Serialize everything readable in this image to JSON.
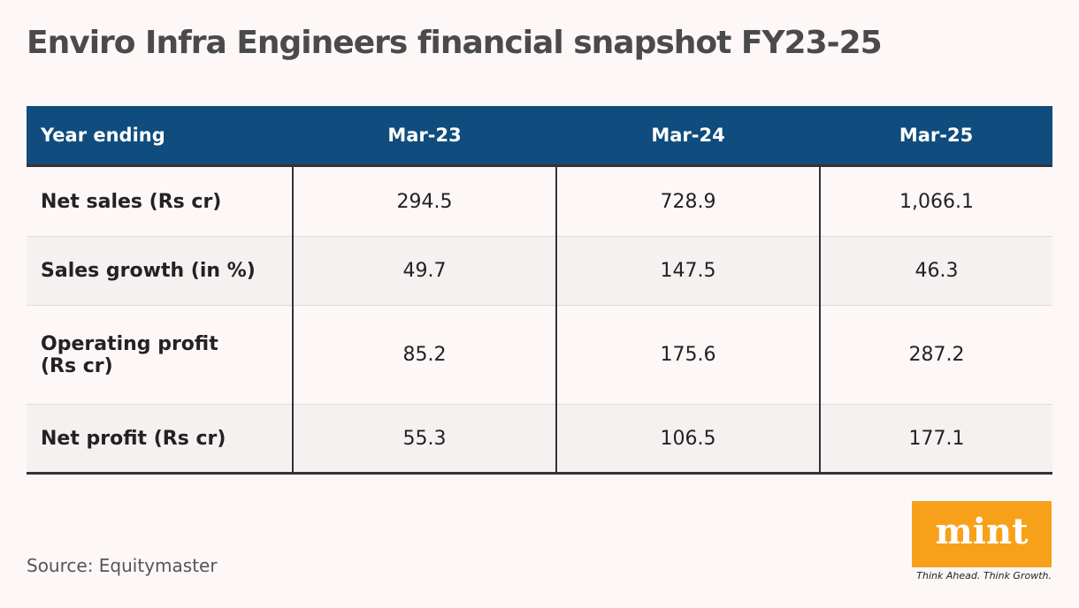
{
  "header": {
    "title": "Enviro Infra Engineers financial snapshot FY23-25"
  },
  "table": {
    "columns": [
      "Year ending",
      "Mar-23",
      "Mar-24",
      "Mar-25"
    ],
    "rows": [
      [
        "Net sales (Rs cr)",
        "294.5",
        "728.9",
        "1,066.1"
      ],
      [
        "Sales growth (in %)",
        "49.7",
        "147.5",
        "46.3"
      ],
      [
        "Operating profit (Rs cr)",
        "85.2",
        "175.6",
        "287.2"
      ],
      [
        "Net profit (Rs cr)",
        "55.3",
        "106.5",
        "177.1"
      ]
    ]
  },
  "footer": {
    "source": "Source: Equitymaster",
    "logo": "mint",
    "tagline": "Think Ahead. Think Growth."
  }
}
